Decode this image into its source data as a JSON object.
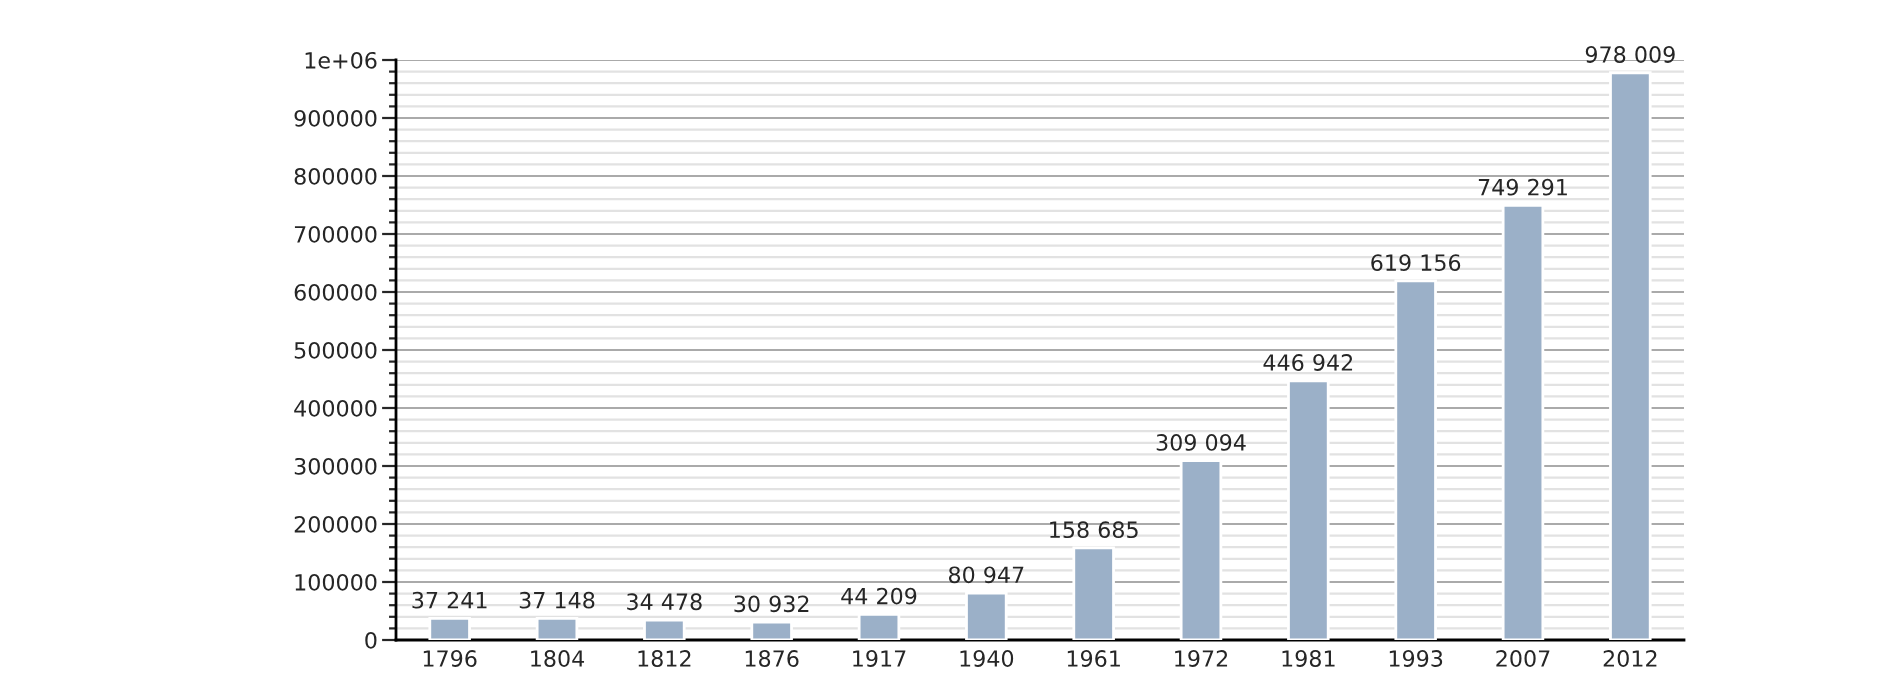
{
  "chart_data": {
    "type": "bar",
    "categories": [
      "1796",
      "1804",
      "1812",
      "1876",
      "1917",
      "1940",
      "1961",
      "1972",
      "1981",
      "1993",
      "2007",
      "2012"
    ],
    "values": [
      37241,
      37148,
      34478,
      30932,
      44209,
      80947,
      158685,
      309094,
      446942,
      619156,
      749291,
      978009
    ],
    "value_labels": [
      "37 241",
      "37 148",
      "34 478",
      "30 932",
      "44 209",
      "80 947",
      "158 685",
      "309 094",
      "446 942",
      "619 156",
      "749 291",
      "978 009"
    ],
    "color": "#9bb0c8",
    "ylim": [
      0,
      1000000
    ],
    "yticks": [
      0,
      {
        "value": 20000,
        "label": null
      },
      {
        "value": 40000,
        "label": null
      },
      {
        "value": 60000,
        "label": null
      },
      {
        "value": 80000,
        "label": null
      },
      100000,
      {
        "value": 120000,
        "label": null
      },
      {
        "value": 140000,
        "label": null
      },
      {
        "value": 160000,
        "label": null
      },
      {
        "value": 180000,
        "label": null
      },
      200000,
      {
        "value": 220000,
        "label": null
      },
      {
        "value": 240000,
        "label": null
      },
      {
        "value": 260000,
        "label": null
      },
      {
        "value": 280000,
        "label": null
      },
      300000,
      {
        "value": 320000,
        "label": null
      },
      {
        "value": 340000,
        "label": null
      },
      {
        "value": 360000,
        "label": null
      },
      {
        "value": 380000,
        "label": null
      },
      400000,
      {
        "value": 420000,
        "label": null
      },
      {
        "value": 440000,
        "label": null
      },
      {
        "value": 460000,
        "label": null
      },
      {
        "value": 480000,
        "label": null
      },
      500000,
      {
        "value": 520000,
        "label": null
      },
      {
        "value": 540000,
        "label": null
      },
      {
        "value": 560000,
        "label": null
      },
      {
        "value": 580000,
        "label": null
      },
      600000,
      {
        "value": 620000,
        "label": null
      },
      {
        "value": 640000,
        "label": null
      },
      {
        "value": 660000,
        "label": null
      },
      {
        "value": 680000,
        "label": null
      },
      700000,
      {
        "value": 720000,
        "label": null
      },
      {
        "value": 740000,
        "label": null
      },
      {
        "value": 760000,
        "label": null
      },
      {
        "value": 780000,
        "label": null
      },
      800000,
      {
        "value": 820000,
        "label": null
      },
      {
        "value": 840000,
        "label": null
      },
      {
        "value": 860000,
        "label": null
      },
      {
        "value": 880000,
        "label": null
      },
      900000,
      {
        "value": 920000,
        "label": null
      },
      {
        "value": 940000,
        "label": null
      },
      {
        "value": 960000,
        "label": null
      },
      {
        "value": 980000,
        "label": null
      },
      {
        "value": 1000000,
        "label": "1e+06"
      }
    ],
    "grid": "y"
  }
}
